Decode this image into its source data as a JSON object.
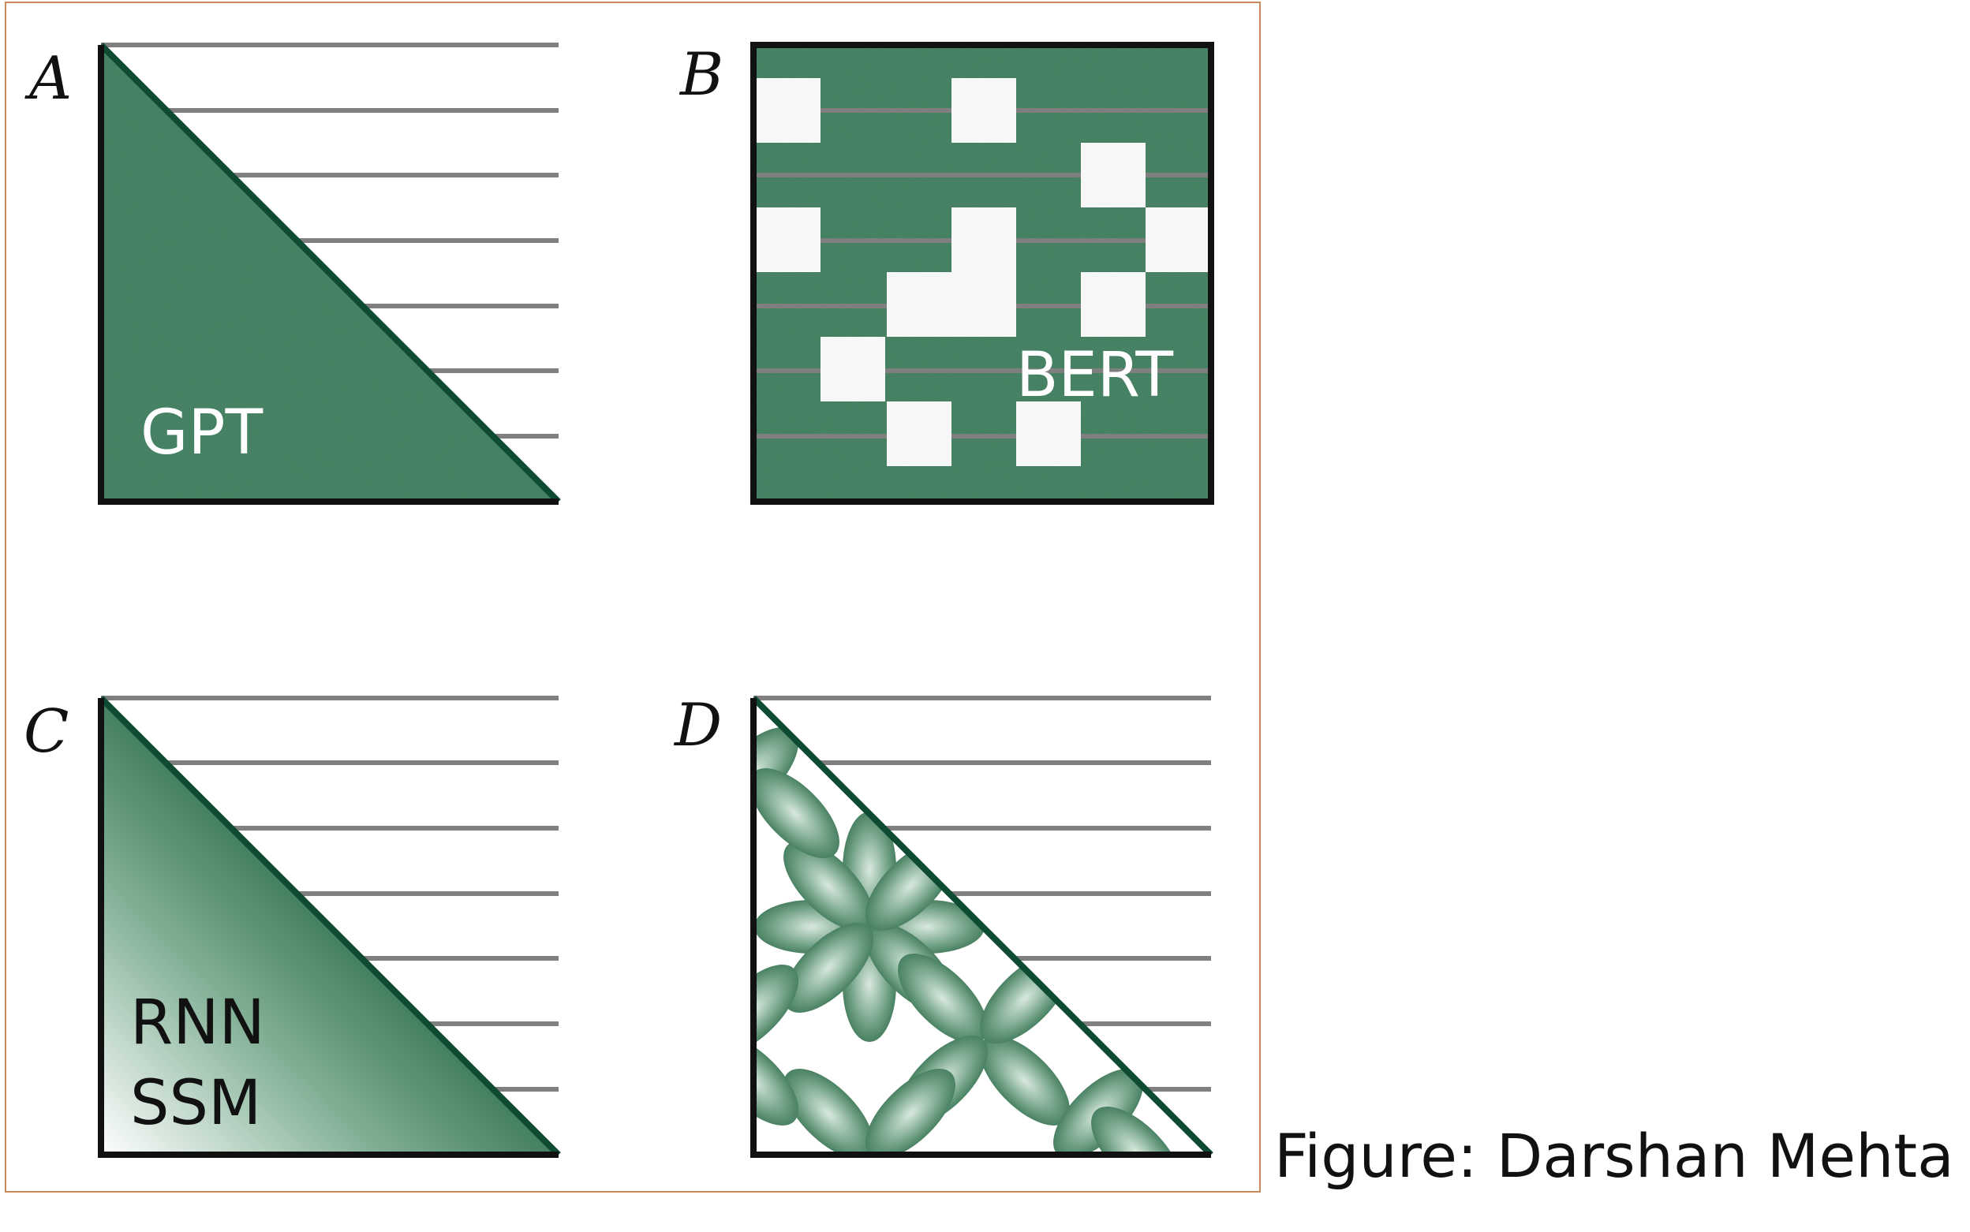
{
  "panels": [
    {
      "letter": "A",
      "label": "GPT"
    },
    {
      "letter": "B",
      "label": "BERT"
    },
    {
      "letter": "C",
      "label_lines": [
        "RNN",
        "SSM"
      ]
    },
    {
      "letter": "D"
    }
  ],
  "credit": "Figure: Darshan Mehta",
  "colors": {
    "green": "#3d7a5a",
    "dark_green": "#0f4a32",
    "gray_line": "#7f7f7f",
    "frame": "#c8895c",
    "outline": "#111111"
  }
}
